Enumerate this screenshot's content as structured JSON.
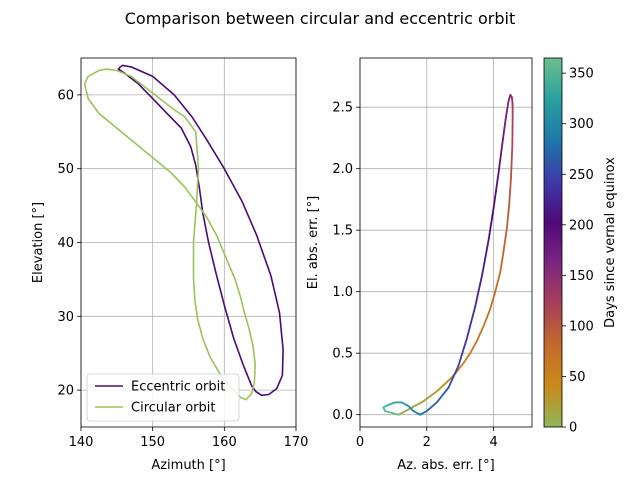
{
  "figure": {
    "title": "Comparison between circular and eccentric orbit"
  },
  "colors": {
    "eccentric": "#4b0b72",
    "circular": "#97c55b",
    "grid": "#b0b0b0"
  },
  "chart_data": [
    {
      "type": "line",
      "xlabel": "Azimuth [°]",
      "ylabel": "Elevation [°]",
      "xlim": [
        140,
        170
      ],
      "ylim": [
        15,
        65
      ],
      "xticks": [
        "140",
        "150",
        "160",
        "170"
      ],
      "yticks": [
        "20",
        "30",
        "40",
        "50",
        "60"
      ],
      "grid": true,
      "legend_position": "lower-left",
      "series": [
        {
          "name": "Eccentric orbit",
          "x": [
            145.5,
            145.8,
            147,
            150,
            153,
            155.5,
            157.5,
            160,
            162.5,
            164.5,
            166.5,
            167.7,
            168.2,
            168.1,
            167.3,
            166.2,
            165.2,
            164.4,
            163.8,
            163.3,
            162.6,
            161.3,
            160,
            158.8,
            157.8,
            157,
            156.5,
            156,
            155.3,
            154,
            152,
            150,
            148,
            146,
            145.2,
            145.5
          ],
          "y": [
            63.8,
            64,
            63.8,
            62.5,
            60,
            57,
            54,
            50,
            45.5,
            41,
            35.5,
            30.5,
            25.5,
            22,
            20.2,
            19.4,
            19.3,
            19.8,
            20.6,
            21.8,
            23.5,
            27,
            31.5,
            36,
            40,
            44,
            47.5,
            50.5,
            53,
            55.5,
            57.5,
            59.5,
            61.5,
            63,
            63.5,
            63.8
          ]
        },
        {
          "name": "Circular orbit",
          "x": [
            142.5,
            143.5,
            145,
            147,
            149,
            151,
            153,
            154.5,
            156,
            156.4,
            156.1,
            155.7,
            155.7,
            155.9,
            156.3,
            157,
            158,
            159.5,
            161,
            162.3,
            163,
            163.8,
            164.2,
            164.3,
            164,
            163.4,
            162.8,
            162.3,
            161.5,
            160.2,
            158.9,
            157.5,
            156,
            154.5,
            152.5,
            150,
            147.5,
            145,
            142.5,
            141,
            140.5,
            141,
            142.5
          ],
          "y": [
            63.3,
            63.5,
            63.3,
            62.5,
            61,
            59.5,
            58,
            57,
            55,
            50,
            45,
            40,
            35,
            32,
            29.5,
            27,
            24.5,
            22,
            20.3,
            19,
            18.7,
            19.5,
            21,
            23.5,
            26,
            28.5,
            30.5,
            32.5,
            35,
            38,
            41,
            43.5,
            45.5,
            47.5,
            49.5,
            51.5,
            53.5,
            55.5,
            57.5,
            59.5,
            61.5,
            62.5,
            63.3
          ]
        }
      ]
    },
    {
      "type": "scatter",
      "xlabel": "Az. abs. err. [°]",
      "ylabel": "El. abs. err. [°]",
      "xlim": [
        0,
        5.15
      ],
      "ylim": [
        -0.1,
        2.9
      ],
      "xticks": [
        "0",
        "2",
        "4"
      ],
      "yticks": [
        "0.0",
        "0.5",
        "1.0",
        "1.5",
        "2.0",
        "2.5"
      ],
      "grid": true,
      "color_by": "days",
      "points": [
        {
          "d": 0,
          "x": 1.15,
          "y": 0.0
        },
        {
          "d": 5,
          "x": 1.3,
          "y": 0.02
        },
        {
          "d": 10,
          "x": 1.5,
          "y": 0.05
        },
        {
          "d": 15,
          "x": 1.7,
          "y": 0.08
        },
        {
          "d": 20,
          "x": 1.9,
          "y": 0.11
        },
        {
          "d": 25,
          "x": 2.1,
          "y": 0.15
        },
        {
          "d": 30,
          "x": 2.3,
          "y": 0.19
        },
        {
          "d": 35,
          "x": 2.5,
          "y": 0.24
        },
        {
          "d": 40,
          "x": 2.7,
          "y": 0.29
        },
        {
          "d": 45,
          "x": 2.9,
          "y": 0.35
        },
        {
          "d": 50,
          "x": 3.1,
          "y": 0.42
        },
        {
          "d": 55,
          "x": 3.3,
          "y": 0.5
        },
        {
          "d": 60,
          "x": 3.5,
          "y": 0.6
        },
        {
          "d": 65,
          "x": 3.7,
          "y": 0.72
        },
        {
          "d": 70,
          "x": 3.9,
          "y": 0.86
        },
        {
          "d": 75,
          "x": 4.05,
          "y": 1.0
        },
        {
          "d": 80,
          "x": 4.2,
          "y": 1.16
        },
        {
          "d": 85,
          "x": 4.3,
          "y": 1.33
        },
        {
          "d": 90,
          "x": 4.4,
          "y": 1.52
        },
        {
          "d": 95,
          "x": 4.47,
          "y": 1.72
        },
        {
          "d": 100,
          "x": 4.52,
          "y": 1.92
        },
        {
          "d": 110,
          "x": 4.56,
          "y": 2.18
        },
        {
          "d": 120,
          "x": 4.57,
          "y": 2.38
        },
        {
          "d": 130,
          "x": 4.57,
          "y": 2.52
        },
        {
          "d": 140,
          "x": 4.55,
          "y": 2.58
        },
        {
          "d": 150,
          "x": 4.5,
          "y": 2.6
        },
        {
          "d": 160,
          "x": 4.44,
          "y": 2.54
        },
        {
          "d": 170,
          "x": 4.36,
          "y": 2.4
        },
        {
          "d": 180,
          "x": 4.26,
          "y": 2.2
        },
        {
          "d": 190,
          "x": 4.14,
          "y": 1.95
        },
        {
          "d": 200,
          "x": 4.0,
          "y": 1.68
        },
        {
          "d": 210,
          "x": 3.85,
          "y": 1.42
        },
        {
          "d": 220,
          "x": 3.66,
          "y": 1.14
        },
        {
          "d": 230,
          "x": 3.45,
          "y": 0.88
        },
        {
          "d": 240,
          "x": 3.2,
          "y": 0.62
        },
        {
          "d": 250,
          "x": 2.95,
          "y": 0.4
        },
        {
          "d": 260,
          "x": 2.65,
          "y": 0.22
        },
        {
          "d": 270,
          "x": 2.3,
          "y": 0.1
        },
        {
          "d": 280,
          "x": 2.0,
          "y": 0.03
        },
        {
          "d": 290,
          "x": 1.8,
          "y": 0.0
        },
        {
          "d": 300,
          "x": 1.6,
          "y": 0.03
        },
        {
          "d": 310,
          "x": 1.45,
          "y": 0.07
        },
        {
          "d": 320,
          "x": 1.25,
          "y": 0.1
        },
        {
          "d": 330,
          "x": 1.05,
          "y": 0.1
        },
        {
          "d": 340,
          "x": 0.85,
          "y": 0.08
        },
        {
          "d": 350,
          "x": 0.7,
          "y": 0.06
        },
        {
          "d": 358,
          "x": 0.75,
          "y": 0.03
        },
        {
          "d": 365,
          "x": 1.15,
          "y": 0.0
        }
      ],
      "colorbar": {
        "label": "Days since vernal equinox",
        "range": [
          0,
          365
        ],
        "ticks": [
          "0",
          "50",
          "100",
          "150",
          "200",
          "250",
          "300",
          "350"
        ],
        "stops": [
          "#8fb65a",
          "#c98a1a",
          "#c26b2a",
          "#a8405a",
          "#7a2680",
          "#4e0a78",
          "#3e3aa8",
          "#1e78a8",
          "#2aa0a0",
          "#6cc08a"
        ]
      }
    }
  ]
}
